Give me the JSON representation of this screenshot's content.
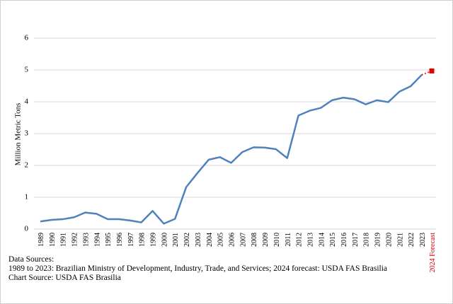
{
  "chart_data": {
    "type": "line",
    "y_label": "Million Metric Tons",
    "categories": [
      "1989",
      "1990",
      "1991",
      "1992",
      "1993",
      "1994",
      "1995",
      "1996",
      "1997",
      "1998",
      "1999",
      "2000",
      "2001",
      "2002",
      "2003",
      "2004",
      "2005",
      "2006",
      "2007",
      "2008",
      "2009",
      "2010",
      "2011",
      "2012",
      "2013",
      "2014",
      "2015",
      "2016",
      "2017",
      "2018",
      "2019",
      "2020",
      "2021",
      "2022",
      "2023",
      "2024 Forecast"
    ],
    "series": [
      {
        "color": "#4f81bd",
        "values": [
          0.24,
          0.29,
          0.31,
          0.37,
          0.52,
          0.48,
          0.31,
          0.31,
          0.27,
          0.21,
          0.57,
          0.17,
          0.32,
          1.32,
          1.76,
          2.18,
          2.26,
          2.08,
          2.42,
          2.57,
          2.56,
          2.51,
          2.23,
          3.57,
          3.72,
          3.81,
          4.05,
          4.13,
          4.08,
          3.92,
          4.05,
          3.99,
          4.32,
          4.49,
          4.85,
          null
        ]
      },
      {
        "color": "#e00000",
        "values": [
          null,
          null,
          null,
          null,
          null,
          null,
          null,
          null,
          null,
          null,
          null,
          null,
          null,
          null,
          null,
          null,
          null,
          null,
          null,
          null,
          null,
          null,
          null,
          null,
          null,
          null,
          null,
          null,
          null,
          null,
          null,
          null,
          null,
          null,
          null,
          4.97
        ]
      }
    ],
    "ylim": [
      0,
      6
    ],
    "yticks": [
      0,
      1,
      2,
      3,
      4,
      5,
      6
    ],
    "grid": true,
    "notes": [
      "Data Sources:",
      "1989 to 2023: Brazilian Ministry of Development, Industry, Trade, and Services; 2024 forecast: USDA FAS Brasilia",
      "Chart Source: USDA FAS Brasilia"
    ]
  }
}
